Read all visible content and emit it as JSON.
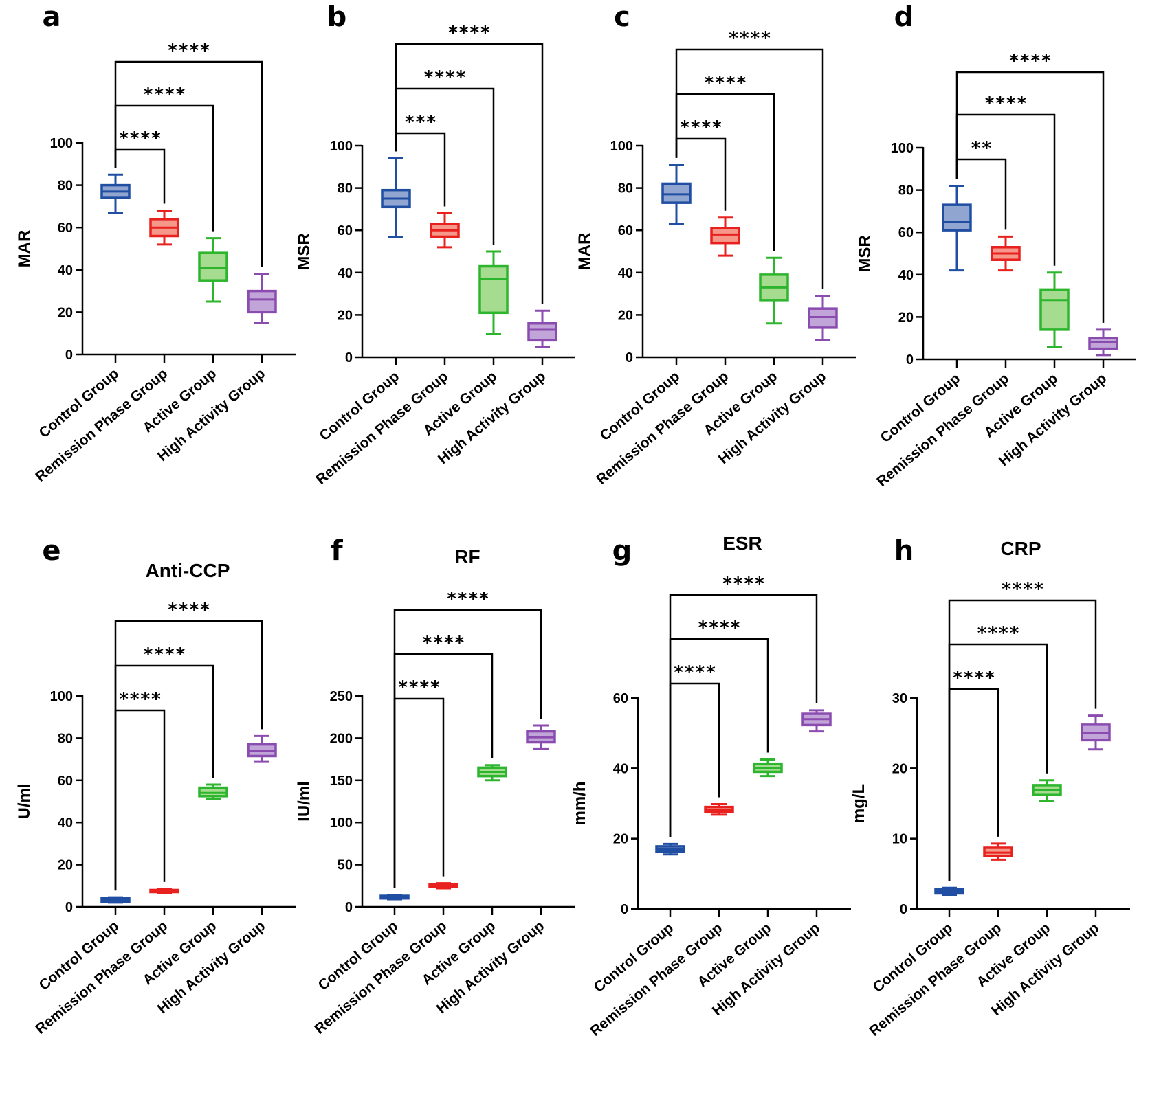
{
  "chart_data": [
    {
      "type": "box",
      "panel": "a",
      "title": "",
      "xlabel": "",
      "ylabel": "MAR",
      "ylim": [
        0,
        100
      ],
      "yticks": [
        0,
        20,
        40,
        60,
        80,
        100
      ],
      "categories": [
        "Control Group",
        "Remission Phase Group",
        "Active Group",
        "High Activity Group"
      ],
      "boxes": [
        {
          "min": 67,
          "q1": 74,
          "median": 77,
          "q3": 80,
          "max": 85
        },
        {
          "min": 52,
          "q1": 56,
          "median": 60,
          "q3": 64,
          "max": 68
        },
        {
          "min": 25,
          "q1": 35,
          "median": 41,
          "q3": 48,
          "max": 55
        },
        {
          "min": 15,
          "q1": 20,
          "median": 26,
          "q3": 30,
          "max": 38
        }
      ],
      "comparisons": [
        {
          "from": 0,
          "to": 1,
          "label": "****"
        },
        {
          "from": 0,
          "to": 2,
          "label": "****"
        },
        {
          "from": 0,
          "to": 3,
          "label": "****"
        }
      ]
    },
    {
      "type": "box",
      "panel": "b",
      "title": "",
      "xlabel": "",
      "ylabel": "MSR",
      "ylim": [
        0,
        100
      ],
      "yticks": [
        0,
        20,
        40,
        60,
        80,
        100
      ],
      "categories": [
        "Control Group",
        "Remission Phase Group",
        "Active Group",
        "High Activity Group"
      ],
      "boxes": [
        {
          "min": 57,
          "q1": 71,
          "median": 75,
          "q3": 79,
          "max": 94
        },
        {
          "min": 52,
          "q1": 57,
          "median": 60,
          "q3": 63,
          "max": 68
        },
        {
          "min": 11,
          "q1": 21,
          "median": 37,
          "q3": 43,
          "max": 50
        },
        {
          "min": 5,
          "q1": 8,
          "median": 13,
          "q3": 16,
          "max": 22
        }
      ],
      "comparisons": [
        {
          "from": 0,
          "to": 1,
          "label": "***"
        },
        {
          "from": 0,
          "to": 2,
          "label": "****"
        },
        {
          "from": 0,
          "to": 3,
          "label": "****"
        }
      ]
    },
    {
      "type": "box",
      "panel": "c",
      "title": "",
      "xlabel": "",
      "ylabel": "MAR",
      "ylim": [
        0,
        100
      ],
      "yticks": [
        0,
        20,
        40,
        60,
        80,
        100
      ],
      "categories": [
        "Control Group",
        "Remission Phase Group",
        "Active Group",
        "High Activity Group"
      ],
      "boxes": [
        {
          "min": 63,
          "q1": 73,
          "median": 77,
          "q3": 82,
          "max": 91
        },
        {
          "min": 48,
          "q1": 54,
          "median": 58,
          "q3": 61,
          "max": 66
        },
        {
          "min": 16,
          "q1": 27,
          "median": 33,
          "q3": 39,
          "max": 47
        },
        {
          "min": 8,
          "q1": 14,
          "median": 19,
          "q3": 23,
          "max": 29
        }
      ],
      "comparisons": [
        {
          "from": 0,
          "to": 1,
          "label": "****"
        },
        {
          "from": 0,
          "to": 2,
          "label": "****"
        },
        {
          "from": 0,
          "to": 3,
          "label": "****"
        }
      ]
    },
    {
      "type": "box",
      "panel": "d",
      "title": "",
      "xlabel": "",
      "ylabel": "MSR",
      "ylim": [
        0,
        100
      ],
      "yticks": [
        0,
        20,
        40,
        60,
        80,
        100
      ],
      "categories": [
        "Control Group",
        "Remission Phase Group",
        "Active Group",
        "High Activity Group"
      ],
      "boxes": [
        {
          "min": 42,
          "q1": 61,
          "median": 65,
          "q3": 73,
          "max": 82
        },
        {
          "min": 42,
          "q1": 47,
          "median": 50,
          "q3": 53,
          "max": 58
        },
        {
          "min": 6,
          "q1": 14,
          "median": 28,
          "q3": 33,
          "max": 41
        },
        {
          "min": 2,
          "q1": 5,
          "median": 8,
          "q3": 10,
          "max": 14
        }
      ],
      "comparisons": [
        {
          "from": 0,
          "to": 1,
          "label": "**"
        },
        {
          "from": 0,
          "to": 2,
          "label": "****"
        },
        {
          "from": 0,
          "to": 3,
          "label": "****"
        }
      ]
    },
    {
      "type": "box",
      "panel": "e",
      "title": "Anti-CCP",
      "xlabel": "",
      "ylabel": "U/ml",
      "ylim": [
        0,
        100
      ],
      "yticks": [
        0,
        20,
        40,
        60,
        80,
        100
      ],
      "categories": [
        "Control Group",
        "Remission Phase Group",
        "Active Group",
        "High Activity Group"
      ],
      "boxes": [
        {
          "min": 2,
          "q1": 2.5,
          "median": 3,
          "q3": 4,
          "max": 4.5
        },
        {
          "min": 6.5,
          "q1": 7,
          "median": 7.5,
          "q3": 8,
          "max": 8.5
        },
        {
          "min": 51,
          "q1": 52.5,
          "median": 54,
          "q3": 56.5,
          "max": 58
        },
        {
          "min": 69,
          "q1": 71.5,
          "median": 74,
          "q3": 77,
          "max": 81
        }
      ],
      "comparisons": [
        {
          "from": 0,
          "to": 1,
          "label": "****"
        },
        {
          "from": 0,
          "to": 2,
          "label": "****"
        },
        {
          "from": 0,
          "to": 3,
          "label": "****"
        }
      ]
    },
    {
      "type": "box",
      "panel": "f",
      "title": "RF",
      "xlabel": "",
      "ylabel": "IU/ml",
      "ylim": [
        0,
        250
      ],
      "yticks": [
        0,
        50,
        100,
        150,
        200,
        250
      ],
      "categories": [
        "Control Group",
        "Remission Phase Group",
        "Active Group",
        "High Activity Group"
      ],
      "boxes": [
        {
          "min": 9,
          "q1": 10,
          "median": 11,
          "q3": 13,
          "max": 14
        },
        {
          "min": 22,
          "q1": 23.5,
          "median": 25,
          "q3": 27,
          "max": 28
        },
        {
          "min": 150,
          "q1": 155,
          "median": 160,
          "q3": 165,
          "max": 168
        },
        {
          "min": 187,
          "q1": 195,
          "median": 201,
          "q3": 208,
          "max": 215
        }
      ],
      "comparisons": [
        {
          "from": 0,
          "to": 1,
          "label": "****"
        },
        {
          "from": 0,
          "to": 2,
          "label": "****"
        },
        {
          "from": 0,
          "to": 3,
          "label": "****"
        }
      ]
    },
    {
      "type": "box",
      "panel": "g",
      "title": "ESR",
      "xlabel": "",
      "ylabel": "mm/h",
      "ylim": [
        0,
        60
      ],
      "yticks": [
        0,
        20,
        40,
        60
      ],
      "categories": [
        "Control Group",
        "Remission Phase Group",
        "Active Group",
        "High Activity Group"
      ],
      "boxes": [
        {
          "min": 15.5,
          "q1": 16.3,
          "median": 17,
          "q3": 17.8,
          "max": 18.5
        },
        {
          "min": 26.8,
          "q1": 27.5,
          "median": 28.2,
          "q3": 29,
          "max": 29.8
        },
        {
          "min": 37.8,
          "q1": 39,
          "median": 40,
          "q3": 41.3,
          "max": 42.5
        },
        {
          "min": 50.5,
          "q1": 52.3,
          "median": 54,
          "q3": 55.5,
          "max": 56.5
        }
      ],
      "comparisons": [
        {
          "from": 0,
          "to": 1,
          "label": "****"
        },
        {
          "from": 0,
          "to": 2,
          "label": "****"
        },
        {
          "from": 0,
          "to": 3,
          "label": "****"
        }
      ]
    },
    {
      "type": "box",
      "panel": "h",
      "title": "CRP",
      "xlabel": "",
      "ylabel": "mg/L",
      "ylim": [
        0,
        30
      ],
      "yticks": [
        0,
        10,
        20,
        30
      ],
      "categories": [
        "Control Group",
        "Remission Phase Group",
        "Active Group",
        "High Activity Group"
      ],
      "boxes": [
        {
          "min": 2,
          "q1": 2.2,
          "median": 2.5,
          "q3": 2.8,
          "max": 3
        },
        {
          "min": 7,
          "q1": 7.5,
          "median": 8,
          "q3": 8.7,
          "max": 9.3
        },
        {
          "min": 15.3,
          "q1": 16.2,
          "median": 16.9,
          "q3": 17.6,
          "max": 18.3
        },
        {
          "min": 22.7,
          "q1": 24,
          "median": 25,
          "q3": 26.2,
          "max": 27.5
        }
      ],
      "comparisons": [
        {
          "from": 0,
          "to": 1,
          "label": "****"
        },
        {
          "from": 0,
          "to": 2,
          "label": "****"
        },
        {
          "from": 0,
          "to": 3,
          "label": "****"
        }
      ]
    }
  ],
  "colors": {
    "group_edge": [
      "#1f4ea3",
      "#e8201e",
      "#2db52d",
      "#8b4cb0"
    ],
    "group_fill": [
      "#90a5cf",
      "#f5988a",
      "#a5dc8f",
      "#c1a5d9"
    ],
    "axis": "#000000"
  }
}
